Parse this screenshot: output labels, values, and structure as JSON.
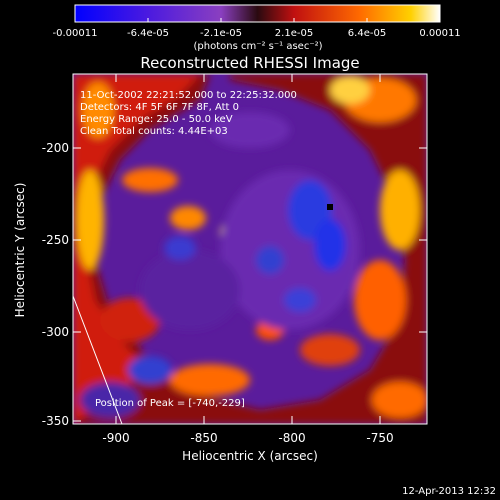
{
  "colorbar": {
    "tick_labels": [
      "-0.00011",
      "-6.4e-05",
      "-2.1e-05",
      "2.1e-05",
      "6.4e-05",
      "0.00011"
    ],
    "units_label": "(photons cm⁻² s⁻¹ asec⁻²)"
  },
  "image": {
    "title": "Reconstructed RHESSI Image",
    "info_lines": [
      "11-Oct-2002 22:21:52.000 to 22:25:32.000",
      "Detectors: 4F 5F 6F 7F 8F, Att 0",
      "Energy Range: 25.0 - 50.0 keV",
      "Clean    Total counts: 4.44E+03"
    ],
    "peak_label": "Position of Peak = [-740,-229]",
    "xlabel": "Heliocentric X (arcsec)",
    "ylabel": "Heliocentric Y (arcsec)",
    "x_ticks": [
      "-900",
      "-850",
      "-800",
      "-750"
    ],
    "y_ticks": [
      "-200",
      "-250",
      "-300",
      "-350"
    ]
  },
  "footer": {
    "timestamp": "12-Apr-2013 12:32"
  }
}
